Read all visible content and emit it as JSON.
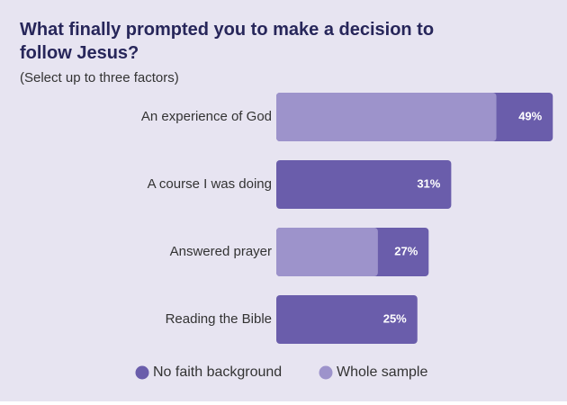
{
  "chart_data": {
    "type": "bar",
    "orientation": "horizontal",
    "title": "What finally prompted you to make a decision to follow Jesus?",
    "subtitle": "(Select up to three factors)",
    "categories": [
      "An experience of God",
      "A course I was doing",
      "Answered prayer",
      "Reading the Bible"
    ],
    "series": [
      {
        "name": "No faith background",
        "color": "#6a5dab",
        "values": [
          49,
          31,
          27,
          25
        ],
        "value_labels": [
          "49%",
          "31%",
          "27%",
          "25%"
        ]
      },
      {
        "name": "Whole sample",
        "color": "#9d93cb",
        "values": [
          39,
          null,
          18,
          null
        ]
      }
    ]
  }
}
